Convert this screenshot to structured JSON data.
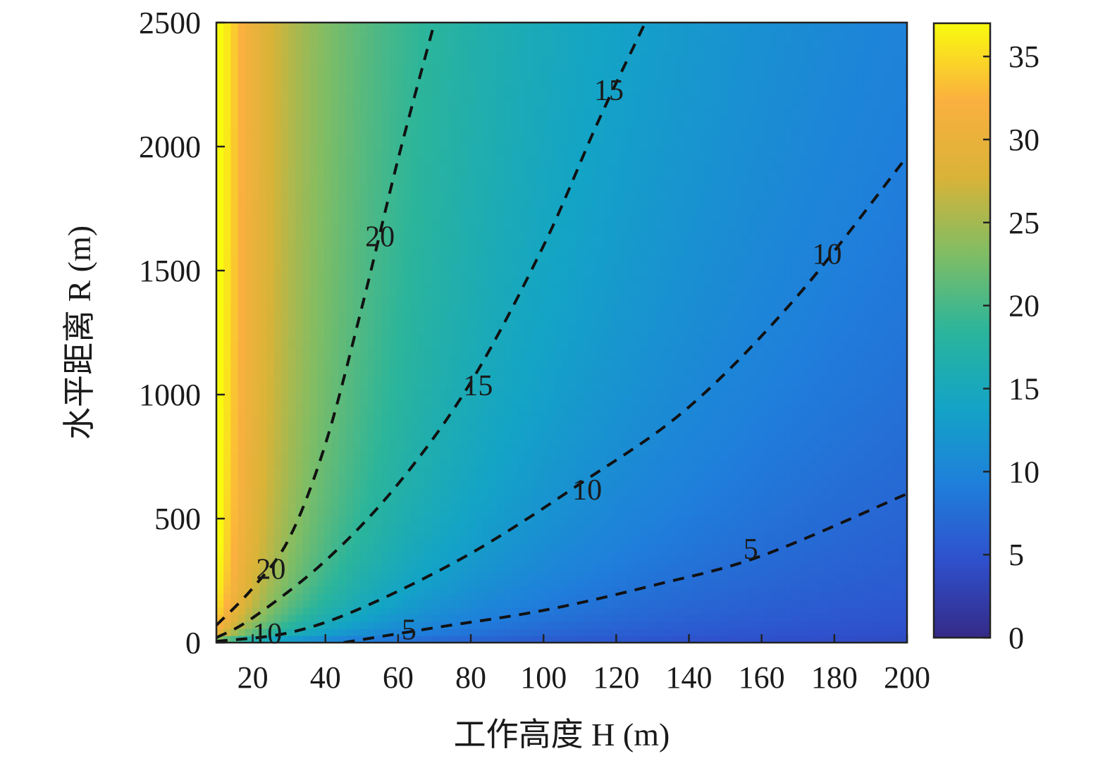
{
  "chart_data": {
    "type": "heatmap",
    "xlabel": "工作高度 H (m)",
    "ylabel": "水平距离 R (m)",
    "xlim": [
      10,
      200
    ],
    "ylim": [
      0,
      2500
    ],
    "x_ticks": [
      20,
      40,
      60,
      80,
      100,
      120,
      140,
      160,
      180,
      200
    ],
    "y_ticks": [
      0,
      500,
      1000,
      1500,
      2000,
      2500
    ],
    "colorbar": {
      "range": [
        0,
        37
      ],
      "ticks": [
        0,
        5,
        10,
        15,
        20,
        25,
        30,
        35
      ],
      "colormap": "parula",
      "colors": [
        "#352a87",
        "#2f50cc",
        "#1f7fdb",
        "#13a4c6",
        "#2bb59b",
        "#80bd64",
        "#d9b337",
        "#fbb03f",
        "#f9fb0e"
      ]
    },
    "contours": [
      {
        "level": 20,
        "points": [
          [
            10,
            70
          ],
          [
            20,
            220
          ],
          [
            30,
            420
          ],
          [
            40,
            800
          ],
          [
            50,
            1350
          ],
          [
            60,
            1950
          ],
          [
            70,
            2500
          ]
        ],
        "labels": [
          {
            "text": "20",
            "x": 25,
            "y": 300
          },
          {
            "text": "20",
            "x": 55,
            "y": 1640
          }
        ]
      },
      {
        "level": 15,
        "points": [
          [
            10,
            20
          ],
          [
            20,
            100
          ],
          [
            40,
            330
          ],
          [
            60,
            640
          ],
          [
            80,
            1050
          ],
          [
            100,
            1600
          ],
          [
            115,
            2100
          ],
          [
            128,
            2500
          ]
        ],
        "labels": [
          {
            "text": "15",
            "x": 82,
            "y": 1040
          },
          {
            "text": "15",
            "x": 118,
            "y": 2230
          }
        ]
      },
      {
        "level": 10,
        "points": [
          [
            10,
            5
          ],
          [
            30,
            40
          ],
          [
            50,
            140
          ],
          [
            80,
            360
          ],
          [
            110,
            640
          ],
          [
            140,
            950
          ],
          [
            170,
            1400
          ],
          [
            200,
            1960
          ]
        ],
        "labels": [
          {
            "text": "10",
            "x": 24,
            "y": 40
          },
          {
            "text": "10",
            "x": 112,
            "y": 620
          },
          {
            "text": "10",
            "x": 178,
            "y": 1570
          }
        ]
      },
      {
        "level": 5,
        "points": [
          [
            45,
            0
          ],
          [
            70,
            60
          ],
          [
            100,
            130
          ],
          [
            130,
            230
          ],
          [
            160,
            350
          ],
          [
            200,
            600
          ]
        ],
        "labels": [
          {
            "text": "5",
            "x": 63,
            "y": 55
          },
          {
            "text": "5",
            "x": 157,
            "y": 380
          }
        ]
      }
    ],
    "grid": false
  }
}
